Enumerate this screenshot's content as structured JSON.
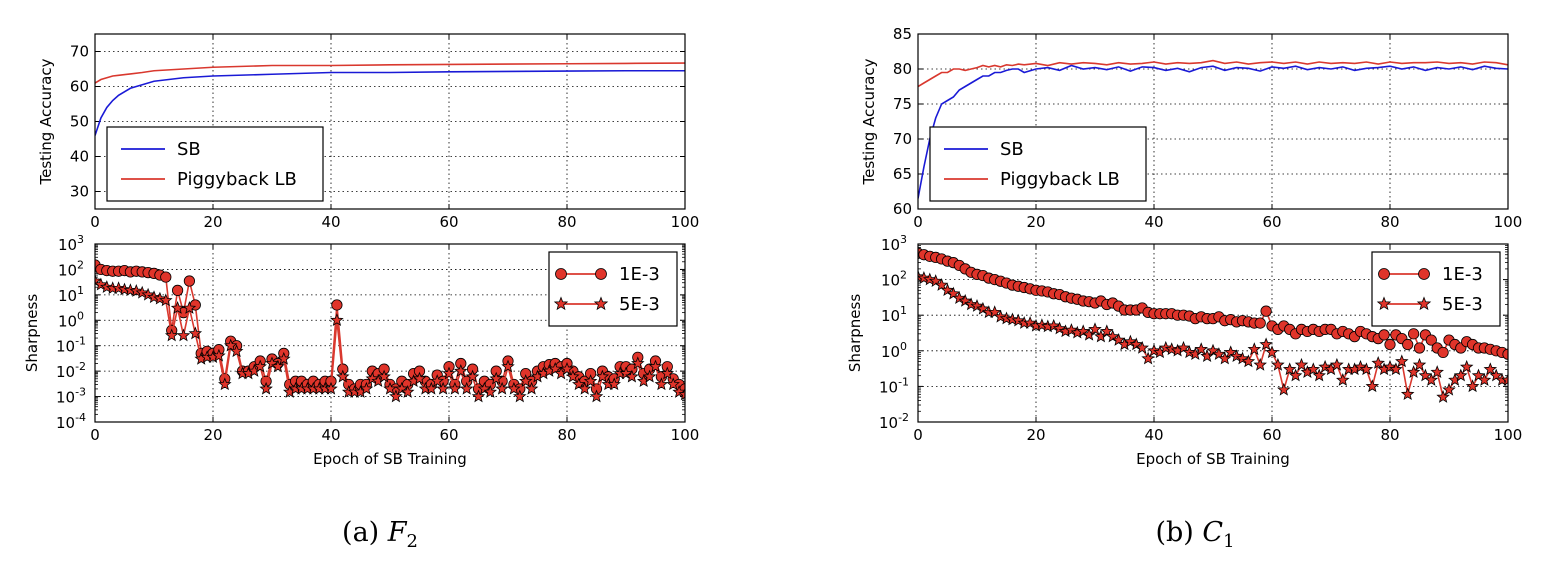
{
  "captions": [
    {
      "label": "(a) ",
      "symbol": "F",
      "sub": "2"
    },
    {
      "label": "(b) ",
      "symbol": "C",
      "sub": "1"
    }
  ],
  "colors": {
    "sb": "#1a1ad6",
    "lb": "#d9382e",
    "marker_fill": "#e0342a"
  },
  "chart_data": [
    {
      "type": "line",
      "title": "",
      "xlabel": "",
      "ylabel": "Testing Accuracy",
      "xlim": [
        0,
        100
      ],
      "ylim": [
        25,
        75
      ],
      "x_ticks": [
        0,
        20,
        40,
        60,
        80,
        100
      ],
      "y_ticks": [
        30,
        40,
        50,
        60,
        70
      ],
      "grid": true,
      "legend_position": "lower-left",
      "x": [
        0,
        1,
        2,
        3,
        4,
        6,
        8,
        10,
        15,
        20,
        30,
        40,
        50,
        60,
        70,
        80,
        90,
        100
      ],
      "series": [
        {
          "name": "SB",
          "color": "#1a1ad6",
          "values": [
            46,
            51,
            54,
            56,
            57.5,
            59.5,
            60.5,
            61.5,
            62.5,
            63,
            63.5,
            64,
            64,
            64.2,
            64.3,
            64.4,
            64.5,
            64.5
          ]
        },
        {
          "name": "Piggyback LB",
          "color": "#d9382e",
          "values": [
            61,
            62,
            62.5,
            63,
            63.2,
            63.6,
            64,
            64.5,
            65,
            65.5,
            66,
            66,
            66.2,
            66.3,
            66.4,
            66.5,
            66.6,
            66.7
          ]
        }
      ]
    },
    {
      "type": "line",
      "title": "",
      "xlabel": "Epoch of SB Training",
      "ylabel": "Sharpness",
      "xlim": [
        0,
        100
      ],
      "ylim": [
        0.0001,
        1000
      ],
      "yscale": "log",
      "x_ticks": [
        0,
        20,
        40,
        60,
        80,
        100
      ],
      "y_ticks": [
        {
          "base": "10",
          "exp": "-4"
        },
        {
          "base": "10",
          "exp": "-3"
        },
        {
          "base": "10",
          "exp": "-2"
        },
        {
          "base": "10",
          "exp": "-1"
        },
        {
          "base": "10",
          "exp": "0"
        },
        {
          "base": "10",
          "exp": "1"
        },
        {
          "base": "10",
          "exp": "2"
        },
        {
          "base": "10",
          "exp": "3"
        }
      ],
      "grid": true,
      "legend_position": "top-right",
      "x": [
        0,
        1,
        2,
        3,
        4,
        5,
        6,
        7,
        8,
        9,
        10,
        11,
        12,
        13,
        14,
        15,
        16,
        17,
        18,
        19,
        20,
        21,
        22,
        23,
        24,
        25,
        26,
        27,
        28,
        29,
        30,
        31,
        32,
        33,
        34,
        35,
        36,
        37,
        38,
        39,
        40,
        41,
        42,
        43,
        44,
        45,
        46,
        47,
        48,
        49,
        50,
        51,
        52,
        53,
        54,
        55,
        56,
        57,
        58,
        59,
        60,
        61,
        62,
        63,
        64,
        65,
        66,
        67,
        68,
        69,
        70,
        71,
        72,
        73,
        74,
        75,
        76,
        77,
        78,
        79,
        80,
        81,
        82,
        83,
        84,
        85,
        86,
        87,
        88,
        89,
        90,
        91,
        92,
        93,
        94,
        95,
        96,
        97,
        98,
        99,
        100
      ],
      "series": [
        {
          "name": "1E-3",
          "marker": "circle",
          "values": [
            150,
            100,
            90,
            85,
            85,
            90,
            80,
            85,
            80,
            75,
            70,
            60,
            50,
            0.4,
            15,
            2,
            35,
            4,
            0.05,
            0.06,
            0.05,
            0.07,
            0.005,
            0.15,
            0.1,
            0.01,
            0.01,
            0.015,
            0.025,
            0.004,
            0.03,
            0.02,
            0.05,
            0.003,
            0.004,
            0.004,
            0.003,
            0.004,
            0.003,
            0.004,
            0.004,
            4,
            0.012,
            0.003,
            0.002,
            0.003,
            0.003,
            0.01,
            0.008,
            0.012,
            0.003,
            0.002,
            0.004,
            0.003,
            0.008,
            0.01,
            0.004,
            0.003,
            0.007,
            0.004,
            0.015,
            0.003,
            0.02,
            0.004,
            0.012,
            0.002,
            0.004,
            0.003,
            0.01,
            0.004,
            0.025,
            0.003,
            0.002,
            0.008,
            0.004,
            0.01,
            0.015,
            0.018,
            0.02,
            0.015,
            0.02,
            0.01,
            0.006,
            0.004,
            0.008,
            0.002,
            0.01,
            0.006,
            0.005,
            0.015,
            0.015,
            0.012,
            0.035,
            0.008,
            0.012,
            0.025,
            0.006,
            0.015,
            0.005,
            0.003,
            0.002
          ]
        },
        {
          "name": "5E-3",
          "marker": "star",
          "values": [
            35,
            25,
            20,
            18,
            18,
            16,
            15,
            14,
            12,
            10,
            8,
            7,
            6,
            0.25,
            3,
            0.25,
            3,
            0.3,
            0.03,
            0.035,
            0.035,
            0.04,
            0.003,
            0.1,
            0.06,
            0.008,
            0.008,
            0.01,
            0.015,
            0.002,
            0.02,
            0.015,
            0.03,
            0.0015,
            0.002,
            0.002,
            0.002,
            0.002,
            0.002,
            0.002,
            0.002,
            1,
            0.006,
            0.0015,
            0.0015,
            0.0015,
            0.002,
            0.005,
            0.004,
            0.006,
            0.002,
            0.001,
            0.002,
            0.0015,
            0.004,
            0.005,
            0.002,
            0.002,
            0.004,
            0.002,
            0.008,
            0.002,
            0.01,
            0.002,
            0.006,
            0.001,
            0.002,
            0.0015,
            0.005,
            0.002,
            0.015,
            0.002,
            0.001,
            0.004,
            0.002,
            0.006,
            0.008,
            0.01,
            0.012,
            0.008,
            0.012,
            0.006,
            0.003,
            0.002,
            0.004,
            0.001,
            0.006,
            0.003,
            0.003,
            0.008,
            0.008,
            0.006,
            0.02,
            0.004,
            0.006,
            0.015,
            0.003,
            0.008,
            0.003,
            0.0015,
            0.0012
          ]
        }
      ]
    },
    {
      "type": "line",
      "title": "",
      "xlabel": "",
      "ylabel": "Testing Accuracy",
      "xlim": [
        0,
        100
      ],
      "ylim": [
        60,
        85
      ],
      "x_ticks": [
        0,
        20,
        40,
        60,
        80,
        100
      ],
      "y_ticks": [
        60,
        65,
        70,
        75,
        80,
        85
      ],
      "grid": true,
      "legend_position": "lower-left",
      "x": [
        0,
        1,
        2,
        3,
        4,
        5,
        6,
        7,
        8,
        9,
        10,
        11,
        12,
        13,
        14,
        15,
        16,
        17,
        18,
        20,
        22,
        24,
        26,
        28,
        30,
        32,
        34,
        36,
        38,
        40,
        42,
        44,
        46,
        48,
        50,
        52,
        54,
        56,
        58,
        60,
        62,
        64,
        66,
        68,
        70,
        72,
        74,
        76,
        78,
        80,
        82,
        84,
        86,
        88,
        90,
        92,
        94,
        96,
        98,
        100
      ],
      "series": [
        {
          "name": "SB",
          "color": "#1a1ad6",
          "values": [
            61.5,
            66,
            70,
            73,
            75,
            75.5,
            76,
            77,
            77.5,
            78,
            78.5,
            79,
            79,
            79.5,
            79.5,
            79.8,
            80,
            80,
            79.5,
            80,
            80.2,
            79.8,
            80.5,
            80,
            80.2,
            79.9,
            80.3,
            79.7,
            80.3,
            80.2,
            79.8,
            80.1,
            79.6,
            80.2,
            80.4,
            79.8,
            80.2,
            80.1,
            79.7,
            80.3,
            80.1,
            80.4,
            79.9,
            80.2,
            80,
            80.3,
            79.8,
            80.1,
            80.2,
            80.4,
            80,
            80.3,
            79.8,
            80.2,
            80,
            80.3,
            79.9,
            80.4,
            80.1,
            80
          ]
        },
        {
          "name": "Piggyback LB",
          "color": "#d9382e",
          "values": [
            77.5,
            78,
            78.5,
            79,
            79.5,
            79.5,
            80,
            80,
            79.8,
            80,
            80.2,
            80.5,
            80.3,
            80.5,
            80.3,
            80.6,
            80.5,
            80.7,
            80.6,
            80.8,
            80.5,
            80.9,
            80.7,
            80.9,
            80.8,
            80.6,
            80.9,
            80.7,
            80.8,
            81,
            80.7,
            80.9,
            80.8,
            80.9,
            81.2,
            80.8,
            81,
            80.7,
            80.9,
            81,
            80.8,
            81,
            80.7,
            81,
            80.8,
            80.9,
            80.8,
            81,
            80.7,
            81,
            80.8,
            80.9,
            80.9,
            81,
            80.8,
            80.9,
            80.7,
            81,
            80.9,
            80.6
          ]
        }
      ]
    },
    {
      "type": "line",
      "title": "",
      "xlabel": "Epoch of SB Training",
      "ylabel": "Sharpness",
      "xlim": [
        0,
        100
      ],
      "ylim": [
        0.01,
        1000
      ],
      "yscale": "log",
      "x_ticks": [
        0,
        20,
        40,
        60,
        80,
        100
      ],
      "y_ticks": [
        {
          "base": "10",
          "exp": "-2"
        },
        {
          "base": "10",
          "exp": "-1"
        },
        {
          "base": "10",
          "exp": "0"
        },
        {
          "base": "10",
          "exp": "1"
        },
        {
          "base": "10",
          "exp": "2"
        },
        {
          "base": "10",
          "exp": "3"
        }
      ],
      "grid": true,
      "legend_position": "top-right",
      "x": [
        0,
        1,
        2,
        3,
        4,
        5,
        6,
        7,
        8,
        9,
        10,
        11,
        12,
        13,
        14,
        15,
        16,
        17,
        18,
        19,
        20,
        21,
        22,
        23,
        24,
        25,
        26,
        27,
        28,
        29,
        30,
        31,
        32,
        33,
        34,
        35,
        36,
        37,
        38,
        39,
        40,
        41,
        42,
        43,
        44,
        45,
        46,
        47,
        48,
        49,
        50,
        51,
        52,
        53,
        54,
        55,
        56,
        57,
        58,
        59,
        60,
        61,
        62,
        63,
        64,
        65,
        66,
        67,
        68,
        69,
        70,
        71,
        72,
        73,
        74,
        75,
        76,
        77,
        78,
        79,
        80,
        81,
        82,
        83,
        84,
        85,
        86,
        87,
        88,
        89,
        90,
        91,
        92,
        93,
        94,
        95,
        96,
        97,
        98,
        99,
        100
      ],
      "series": [
        {
          "name": "1E-3",
          "marker": "circle",
          "values": [
            550,
            500,
            450,
            420,
            380,
            330,
            300,
            250,
            200,
            160,
            140,
            130,
            110,
            100,
            90,
            80,
            70,
            65,
            60,
            55,
            50,
            48,
            45,
            40,
            38,
            33,
            30,
            28,
            25,
            24,
            22,
            25,
            20,
            22,
            18,
            14,
            14,
            14,
            16,
            12,
            11,
            11,
            11,
            11,
            10,
            10,
            9.5,
            8,
            9,
            8,
            8,
            9,
            7,
            7.5,
            6.5,
            7,
            6.5,
            6,
            6,
            13,
            5,
            4,
            5,
            4,
            3,
            4,
            3.5,
            4,
            3.5,
            4,
            4,
            3,
            3.5,
            3,
            2.5,
            3.5,
            3,
            2.5,
            2.2,
            2.8,
            1.5,
            2.8,
            2.2,
            1.5,
            3,
            1.2,
            2.8,
            2,
            1.2,
            0.9,
            2,
            1.5,
            1.2,
            1.8,
            1.5,
            1.2,
            1.2,
            1.1,
            1,
            0.9,
            0.8
          ]
        },
        {
          "name": "5E-3",
          "marker": "star",
          "values": [
            120,
            110,
            100,
            90,
            70,
            50,
            40,
            30,
            25,
            20,
            18,
            15,
            12,
            12,
            9,
            8,
            7.5,
            7,
            6,
            6,
            5,
            5.2,
            4.8,
            5,
            4.2,
            3.5,
            3.8,
            3.2,
            3.5,
            2.8,
            4,
            2.5,
            3.5,
            2.5,
            2,
            1.5,
            1.8,
            1.5,
            1.2,
            0.6,
            1,
            0.9,
            1.2,
            1.1,
            1,
            1.2,
            0.9,
            0.8,
            1.1,
            0.7,
            1,
            0.8,
            0.6,
            0.9,
            0.7,
            0.6,
            0.5,
            1.1,
            0.4,
            1.5,
            0.9,
            0.4,
            0.08,
            0.3,
            0.2,
            0.4,
            0.25,
            0.3,
            0.2,
            0.35,
            0.3,
            0.4,
            0.15,
            0.3,
            0.3,
            0.35,
            0.3,
            0.1,
            0.45,
            0.3,
            0.35,
            0.3,
            0.5,
            0.06,
            0.25,
            0.4,
            0.2,
            0.15,
            0.25,
            0.05,
            0.08,
            0.15,
            0.2,
            0.35,
            0.1,
            0.2,
            0.15,
            0.3,
            0.2,
            0.15,
            0.15
          ]
        }
      ]
    }
  ]
}
